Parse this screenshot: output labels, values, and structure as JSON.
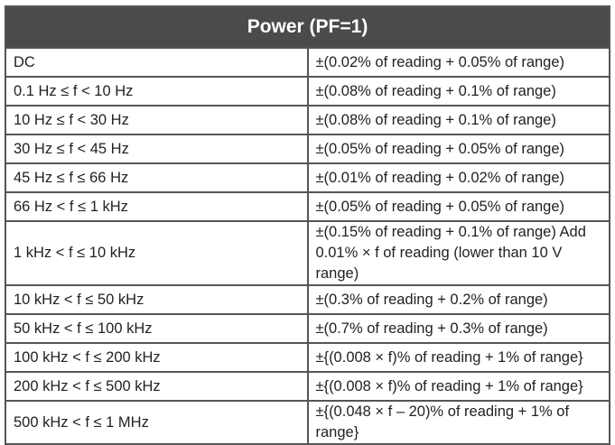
{
  "table": {
    "title": "Power (PF=1)",
    "rows": [
      [
        "DC",
        "±(0.02% of reading + 0.05% of range)"
      ],
      [
        "0.1 Hz ≤ f < 10 Hz",
        "±(0.08% of reading + 0.1% of range)"
      ],
      [
        "10 Hz ≤ f < 30 Hz",
        "±(0.08% of reading + 0.1% of range)"
      ],
      [
        "30 Hz ≤ f < 45 Hz",
        "±(0.05% of reading + 0.05% of range)"
      ],
      [
        "45 Hz ≤ f ≤ 66 Hz",
        "±(0.01% of reading + 0.02% of range)"
      ],
      [
        "66 Hz < f ≤ 1 kHz",
        "±(0.05% of reading + 0.05% of range)"
      ],
      [
        "1 kHz < f ≤ 10 kHz",
        "±(0.15% of reading + 0.1% of range) Add 0.01% × f of reading (lower than 10 V range)"
      ],
      [
        "10 kHz < f ≤ 50 kHz",
        "±(0.3% of reading + 0.2% of range)"
      ],
      [
        "50 kHz < f ≤ 100 kHz",
        "±(0.7% of reading + 0.3% of range)"
      ],
      [
        "100 kHz < f ≤ 200 kHz",
        "±{(0.008 × f)% of reading + 1% of range}"
      ],
      [
        "200 kHz < f ≤ 500 kHz",
        "±{(0.008 × f)% of reading + 1% of range}"
      ],
      [
        "500 kHz < f ≤ 1 MHz",
        "±{(0.048 × f – 20)% of reading + 1% of range}"
      ]
    ]
  }
}
